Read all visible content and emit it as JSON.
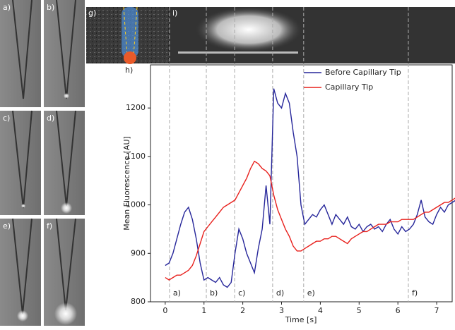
{
  "chart_data": {
    "type": "line",
    "x_label": "Time [s]",
    "y_label": "Mean Fluorescence [AU]",
    "panel_labels": {
      "a": "a)",
      "b": "b)",
      "c": "c)",
      "d": "d)",
      "e": "e)",
      "f": "f)",
      "g": "g)",
      "h": "h)",
      "i": "i)"
    },
    "x": [
      0,
      0.1,
      0.2,
      0.3,
      0.4,
      0.5,
      0.6,
      0.7,
      0.8,
      0.9,
      1.0,
      1.1,
      1.2,
      1.3,
      1.4,
      1.5,
      1.6,
      1.7,
      1.8,
      1.9,
      2.0,
      2.1,
      2.2,
      2.3,
      2.4,
      2.5,
      2.6,
      2.7,
      2.8,
      2.9,
      3.0,
      3.1,
      3.2,
      3.3,
      3.4,
      3.5,
      3.6,
      3.7,
      3.8,
      3.9,
      4.0,
      4.1,
      4.2,
      4.3,
      4.4,
      4.5,
      4.6,
      4.7,
      4.8,
      4.9,
      5.0,
      5.1,
      5.2,
      5.3,
      5.4,
      5.5,
      5.6,
      5.7,
      5.8,
      5.9,
      6.0,
      6.1,
      6.2,
      6.3,
      6.4,
      6.5,
      6.6,
      6.7,
      6.8,
      6.9,
      7.0,
      7.1,
      7.2,
      7.3,
      7.4,
      7.5
    ],
    "series": [
      {
        "name": "Before Capillary Tip",
        "color": "#26269a",
        "values": [
          875,
          880,
          900,
          930,
          960,
          985,
          995,
          970,
          930,
          880,
          845,
          850,
          845,
          840,
          850,
          835,
          830,
          840,
          900,
          950,
          930,
          900,
          880,
          860,
          910,
          950,
          1040,
          960,
          1240,
          1210,
          1200,
          1230,
          1210,
          1150,
          1100,
          1000,
          960,
          970,
          980,
          975,
          990,
          1000,
          980,
          960,
          980,
          970,
          960,
          975,
          955,
          950,
          960,
          945,
          955,
          960,
          950,
          955,
          945,
          960,
          970,
          950,
          940,
          955,
          945,
          950,
          960,
          980,
          1010,
          975,
          965,
          960,
          980,
          995,
          985,
          1000,
          1005,
          1010
        ]
      },
      {
        "name": "Capillary Tip",
        "color": "#e8201c",
        "values": [
          850,
          845,
          850,
          855,
          855,
          860,
          865,
          875,
          895,
          920,
          945,
          955,
          965,
          975,
          985,
          995,
          1000,
          1005,
          1010,
          1025,
          1040,
          1055,
          1075,
          1090,
          1085,
          1075,
          1070,
          1060,
          1020,
          990,
          970,
          950,
          935,
          915,
          905,
          905,
          910,
          915,
          920,
          925,
          925,
          930,
          930,
          935,
          935,
          930,
          925,
          920,
          930,
          935,
          940,
          945,
          945,
          950,
          955,
          960,
          960,
          960,
          965,
          965,
          965,
          970,
          970,
          970,
          970,
          975,
          980,
          985,
          985,
          990,
          995,
          1000,
          1005,
          1005,
          1010,
          1015
        ]
      }
    ],
    "events": [
      {
        "x": 0.11,
        "label": "a)"
      },
      {
        "x": 1.06,
        "label": "b)"
      },
      {
        "x": 1.79,
        "label": "c)"
      },
      {
        "x": 2.77,
        "label": "d)"
      },
      {
        "x": 3.57,
        "label": "e)"
      },
      {
        "x": 6.27,
        "label": "f)"
      }
    ],
    "xlim": [
      -0.38,
      7.4
    ],
    "ylim": [
      800,
      1289
    ],
    "xticks": [
      0,
      1,
      2,
      3,
      4,
      5,
      6,
      7
    ],
    "yticks": [
      800,
      900,
      1000,
      1100,
      1200
    ],
    "legend": "upper-center"
  }
}
